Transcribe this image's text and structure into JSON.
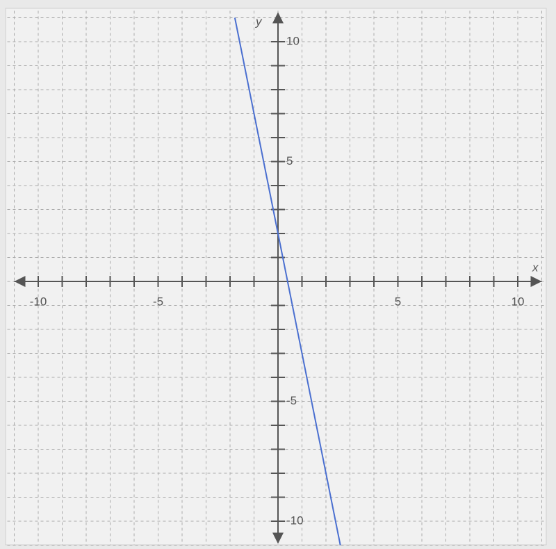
{
  "chart_data": {
    "type": "line",
    "x": [
      -1.8,
      0,
      2.6
    ],
    "series": [
      {
        "color": "#4a6fd0",
        "values": [
          11,
          2,
          -11
        ]
      }
    ],
    "xlim": [
      -11,
      11
    ],
    "ylim": [
      -11,
      11
    ],
    "xticks": [
      -10,
      -5,
      5,
      10
    ],
    "yticks": [
      -10,
      -5,
      5,
      10
    ],
    "grid": true,
    "grid_step": 1,
    "xlabel": "x",
    "ylabel": "y"
  }
}
